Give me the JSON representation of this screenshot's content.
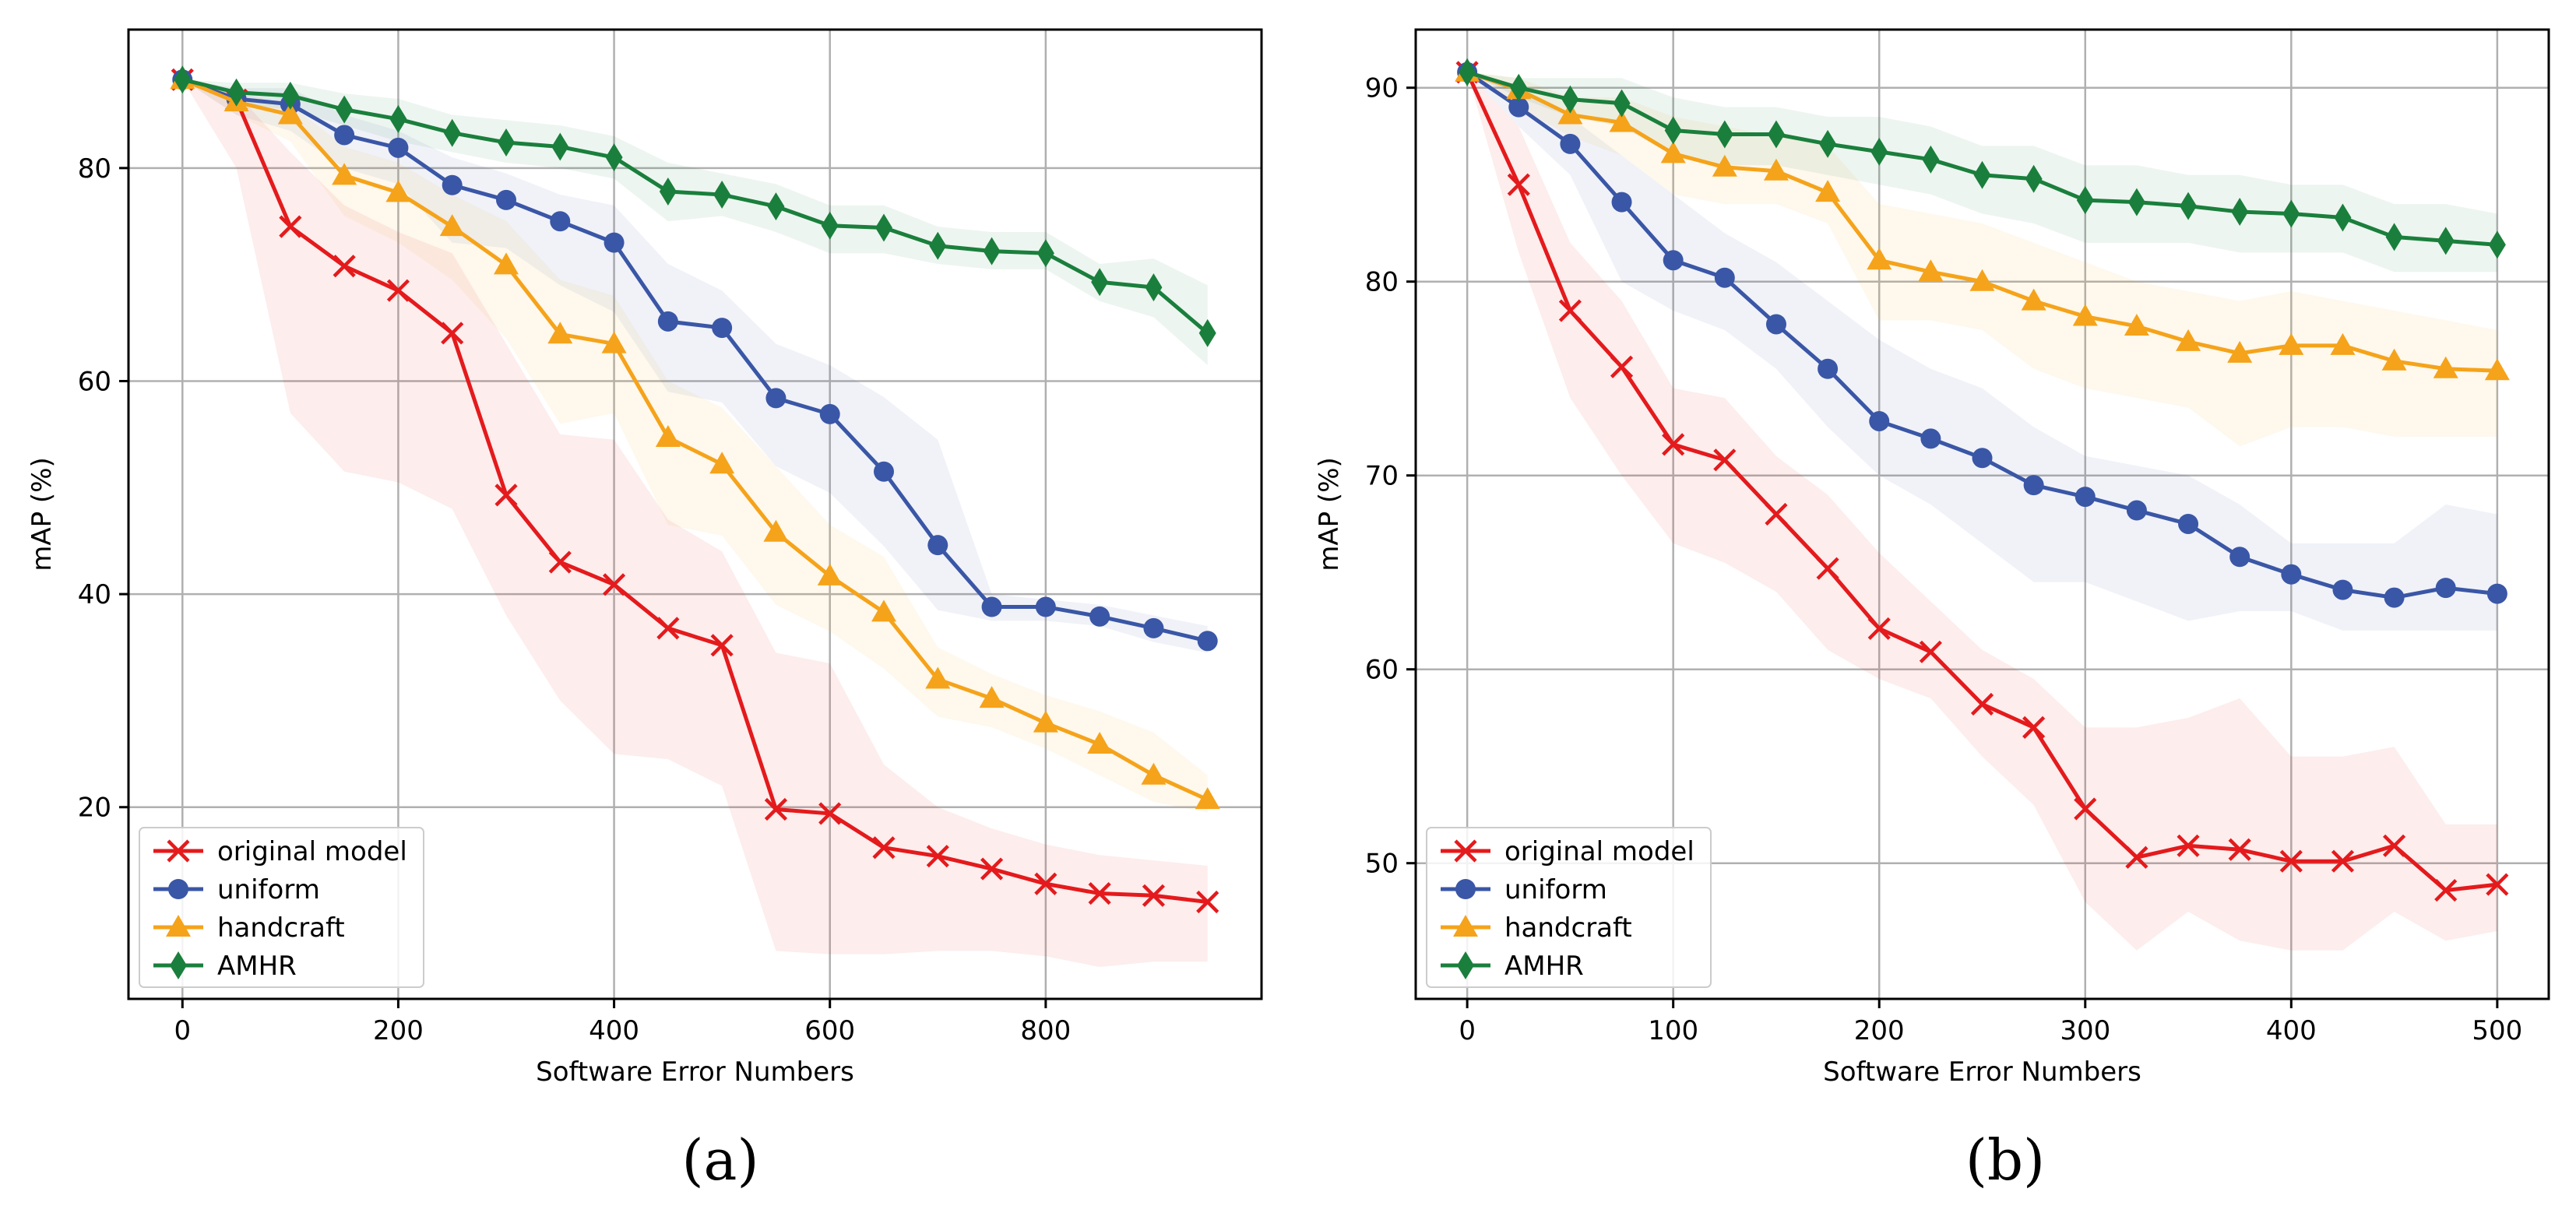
{
  "figure": {
    "captions": [
      "(a)",
      "(b)"
    ]
  },
  "colors": {
    "original model": "#e41a1c",
    "uniform": "#3a56a6",
    "handcraft": "#f5a31a",
    "AMHR": "#1a7f3c",
    "axis": "#000000",
    "grid": "#b0b0b0"
  },
  "chart_data": [
    {
      "type": "line",
      "caption": "(a)",
      "xlabel": "Software Error Numbers",
      "ylabel": "mAP (%)",
      "xlim": [
        -50,
        1000
      ],
      "ylim": [
        2,
        93
      ],
      "xticks": [
        0,
        200,
        400,
        600,
        800
      ],
      "yticks": [
        20,
        40,
        60,
        80
      ],
      "xtick_labels": [
        "0",
        "200",
        "400",
        "600",
        "800"
      ],
      "ytick_labels": [
        "20",
        "40",
        "60",
        "80"
      ],
      "grid": true,
      "legend_position": "lower-left",
      "x": [
        0,
        50,
        100,
        150,
        200,
        250,
        300,
        350,
        400,
        450,
        500,
        550,
        600,
        650,
        700,
        750,
        800,
        850,
        900,
        950
      ],
      "series": [
        {
          "name": "original model",
          "marker": "x",
          "values": [
            88.3,
            86.4,
            74.5,
            70.8,
            68.5,
            64.5,
            49.3,
            43.0,
            40.9,
            36.8,
            35.2,
            19.8,
            19.4,
            16.2,
            15.4,
            14.2,
            12.8,
            11.9,
            11.7,
            11.1
          ],
          "lower": [
            88.3,
            80.0,
            57.0,
            51.5,
            50.5,
            48.0,
            38.0,
            30.0,
            25.0,
            24.5,
            22.0,
            6.5,
            6.2,
            6.2,
            6.5,
            6.5,
            6.0,
            5.0,
            5.5,
            5.5
          ],
          "upper": [
            88.3,
            87.0,
            81.5,
            76.5,
            74.0,
            72.0,
            63.5,
            55.0,
            54.5,
            47.0,
            44.0,
            34.5,
            33.5,
            24.0,
            20.0,
            18.0,
            16.5,
            15.5,
            15.0,
            14.5
          ]
        },
        {
          "name": "uniform",
          "marker": "o",
          "values": [
            88.3,
            86.5,
            86.0,
            83.1,
            81.9,
            78.4,
            77.0,
            75.0,
            73.0,
            65.6,
            65.0,
            58.4,
            56.9,
            51.5,
            44.6,
            38.8,
            38.8,
            37.9,
            36.8,
            35.6
          ],
          "lower": [
            88.3,
            85.0,
            83.5,
            80.0,
            78.5,
            73.0,
            72.5,
            69.0,
            66.5,
            59.0,
            58.0,
            52.0,
            49.5,
            44.5,
            38.5,
            37.5,
            37.5,
            37.0,
            35.5,
            34.5
          ],
          "upper": [
            88.3,
            87.5,
            87.5,
            85.0,
            83.5,
            81.0,
            79.5,
            77.5,
            76.5,
            71.0,
            68.5,
            63.5,
            61.5,
            58.5,
            54.5,
            40.0,
            39.5,
            39.0,
            38.0,
            37.0
          ]
        },
        {
          "name": "handcraft",
          "marker": "^",
          "values": [
            88.3,
            86.2,
            85.0,
            79.3,
            77.7,
            74.5,
            70.9,
            64.4,
            63.5,
            54.7,
            52.2,
            45.8,
            41.7,
            38.3,
            32.0,
            30.2,
            27.9,
            25.9,
            23.0,
            20.7
          ],
          "lower": [
            88.3,
            85.0,
            82.5,
            75.5,
            73.0,
            69.5,
            64.0,
            56.0,
            57.0,
            46.5,
            45.5,
            39.0,
            36.5,
            33.0,
            28.5,
            27.5,
            25.5,
            23.0,
            20.5,
            19.5
          ],
          "upper": [
            88.3,
            87.0,
            86.0,
            82.0,
            80.5,
            77.5,
            75.0,
            69.5,
            68.0,
            60.0,
            57.5,
            52.0,
            46.5,
            43.5,
            35.0,
            32.5,
            30.5,
            29.0,
            27.0,
            23.0
          ]
        },
        {
          "name": "AMHR",
          "marker": "d",
          "values": [
            88.3,
            87.1,
            86.8,
            85.5,
            84.6,
            83.3,
            82.4,
            82.0,
            81.0,
            77.8,
            77.5,
            76.4,
            74.6,
            74.4,
            72.7,
            72.2,
            72.0,
            69.3,
            68.8,
            64.5
          ],
          "lower": [
            88.3,
            86.0,
            85.5,
            84.0,
            82.5,
            81.5,
            80.5,
            80.0,
            79.0,
            75.0,
            75.5,
            74.0,
            72.0,
            72.0,
            71.0,
            70.5,
            70.5,
            67.5,
            66.0,
            61.5
          ],
          "upper": [
            88.3,
            88.0,
            88.0,
            87.0,
            86.5,
            85.0,
            84.5,
            84.0,
            83.0,
            80.5,
            79.5,
            78.5,
            76.5,
            76.5,
            74.5,
            74.0,
            74.0,
            71.0,
            71.5,
            69.0
          ]
        }
      ]
    },
    {
      "type": "line",
      "caption": "(b)",
      "xlabel": "Software Error Numbers",
      "ylabel": "mAP (%)",
      "xlim": [
        -25,
        525
      ],
      "ylim": [
        43,
        93
      ],
      "xticks": [
        0,
        100,
        200,
        300,
        400,
        500
      ],
      "yticks": [
        50,
        60,
        70,
        80,
        90
      ],
      "xtick_labels": [
        "0",
        "100",
        "200",
        "300",
        "400",
        "500"
      ],
      "ytick_labels": [
        "50",
        "60",
        "70",
        "80",
        "90"
      ],
      "grid": true,
      "legend_position": "lower-left",
      "x": [
        0,
        25,
        50,
        75,
        100,
        125,
        150,
        175,
        200,
        225,
        250,
        275,
        300,
        325,
        350,
        375,
        400,
        425,
        450,
        475,
        500
      ],
      "series": [
        {
          "name": "original model",
          "marker": "x",
          "values": [
            90.8,
            85.0,
            78.5,
            75.6,
            71.6,
            70.8,
            68.0,
            65.2,
            62.1,
            60.9,
            58.2,
            57.0,
            52.8,
            50.3,
            50.9,
            50.7,
            50.1,
            50.1,
            50.9,
            48.6,
            48.9
          ],
          "lower": [
            90.8,
            81.5,
            74.0,
            70.0,
            66.5,
            65.5,
            64.0,
            61.0,
            59.5,
            58.5,
            55.5,
            53.0,
            48.0,
            45.5,
            47.5,
            46.0,
            45.5,
            45.5,
            47.5,
            46.0,
            46.5
          ],
          "upper": [
            90.8,
            88.0,
            82.0,
            79.0,
            74.5,
            74.0,
            71.0,
            69.0,
            66.0,
            63.5,
            61.0,
            59.5,
            57.0,
            57.0,
            57.5,
            58.5,
            55.5,
            55.5,
            56.0,
            52.0,
            52.0
          ]
        },
        {
          "name": "uniform",
          "marker": "o",
          "values": [
            90.8,
            89.0,
            87.1,
            84.1,
            81.1,
            80.2,
            77.8,
            75.5,
            72.8,
            71.9,
            70.9,
            69.5,
            68.9,
            68.2,
            67.5,
            65.8,
            64.9,
            64.1,
            63.7,
            64.2,
            63.9
          ],
          "lower": [
            90.8,
            88.0,
            85.5,
            80.0,
            78.5,
            77.5,
            75.5,
            72.5,
            70.0,
            68.5,
            66.5,
            64.5,
            64.5,
            63.5,
            62.5,
            63.0,
            63.0,
            62.0,
            62.0,
            62.0,
            62.0
          ],
          "upper": [
            90.8,
            90.0,
            88.5,
            86.5,
            84.5,
            82.5,
            81.0,
            79.0,
            77.0,
            75.5,
            74.5,
            72.5,
            71.0,
            70.5,
            70.0,
            68.5,
            66.5,
            66.5,
            66.5,
            68.5,
            68.0
          ]
        },
        {
          "name": "handcraft",
          "marker": "^",
          "values": [
            90.8,
            89.9,
            88.6,
            88.2,
            86.6,
            85.9,
            85.7,
            84.6,
            81.1,
            80.5,
            80.0,
            79.0,
            78.2,
            77.7,
            76.9,
            76.3,
            76.7,
            76.7,
            75.9,
            75.5,
            75.4
          ],
          "lower": [
            90.8,
            89.0,
            87.5,
            86.5,
            84.5,
            84.0,
            84.0,
            83.0,
            78.0,
            78.0,
            77.5,
            75.5,
            74.5,
            74.0,
            73.5,
            71.5,
            72.5,
            72.5,
            72.0,
            72.0,
            72.0
          ],
          "upper": [
            90.8,
            90.5,
            89.5,
            89.5,
            88.5,
            88.0,
            87.5,
            87.0,
            84.0,
            83.5,
            83.0,
            82.0,
            81.0,
            80.0,
            79.5,
            79.0,
            79.5,
            79.0,
            78.5,
            78.0,
            77.5
          ]
        },
        {
          "name": "AMHR",
          "marker": "d",
          "values": [
            90.8,
            90.0,
            89.4,
            89.2,
            87.8,
            87.6,
            87.6,
            87.1,
            86.7,
            86.3,
            85.5,
            85.3,
            84.2,
            84.1,
            83.9,
            83.6,
            83.5,
            83.3,
            82.3,
            82.1,
            81.9
          ],
          "lower": [
            90.8,
            89.5,
            88.5,
            88.0,
            86.5,
            86.0,
            86.0,
            85.5,
            85.0,
            84.5,
            83.5,
            83.0,
            82.0,
            82.0,
            82.0,
            81.5,
            81.5,
            81.5,
            80.5,
            80.5,
            80.5
          ],
          "upper": [
            90.8,
            90.5,
            90.5,
            90.5,
            89.5,
            89.0,
            89.0,
            88.5,
            88.5,
            88.0,
            87.0,
            87.0,
            86.0,
            86.0,
            85.5,
            85.5,
            85.0,
            85.0,
            84.0,
            84.0,
            83.5
          ]
        }
      ]
    }
  ]
}
